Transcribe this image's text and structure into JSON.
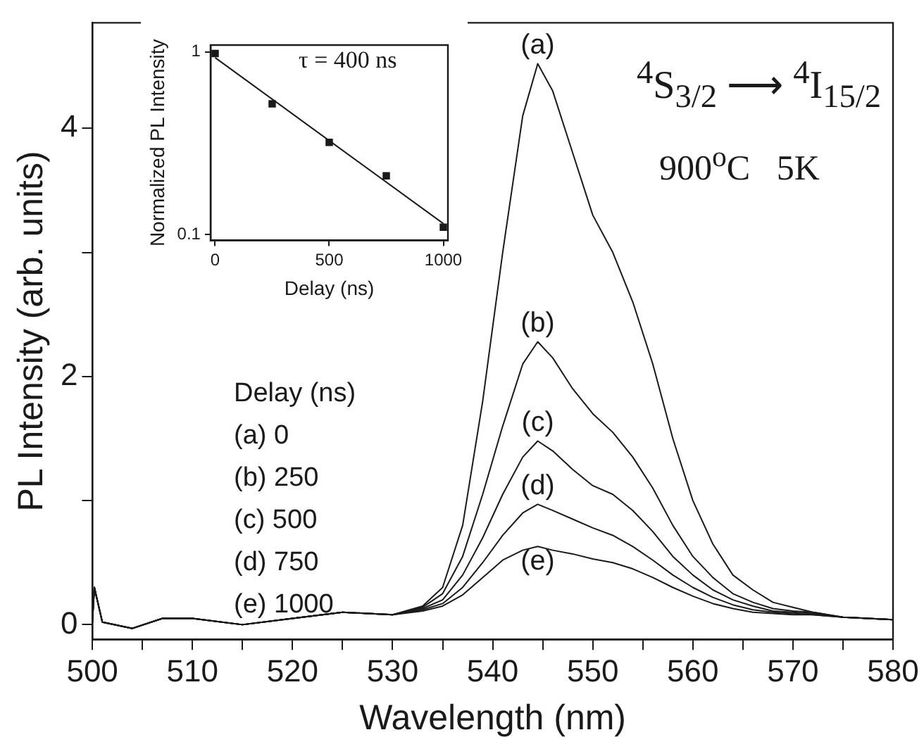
{
  "chart_data": [
    {
      "type": "line",
      "xlabel": "Wavelength (nm)",
      "ylabel": "PL Intensity (arb. units)",
      "xlim": [
        500,
        580
      ],
      "ylim": [
        -0.12,
        4.85
      ],
      "xticks": [
        500,
        {
          "value": 505,
          "label": null
        },
        510,
        {
          "value": 515,
          "label": null
        },
        520,
        {
          "value": 525,
          "label": null
        },
        530,
        {
          "value": 535,
          "label": null
        },
        540,
        {
          "value": 545,
          "label": null
        },
        550,
        {
          "value": 555,
          "label": null
        },
        560,
        {
          "value": 565,
          "label": null
        },
        570,
        {
          "value": 575,
          "label": null
        },
        580
      ],
      "yticks": [
        0,
        {
          "value": 1,
          "label": null
        },
        2,
        {
          "value": 3,
          "label": null
        },
        4
      ],
      "grid": false,
      "legend": false,
      "x": [
        500,
        500.2,
        501,
        504,
        507,
        510,
        515,
        520,
        525,
        530,
        533,
        535,
        537,
        539,
        541,
        543,
        544.5,
        546,
        548,
        550,
        552,
        554,
        556,
        558,
        560,
        562,
        564,
        566,
        568,
        570,
        572,
        575,
        580
      ],
      "series": [
        {
          "name": "(a)",
          "color": "#1a1a1a",
          "values": [
            0.02,
            0.3,
            0.02,
            -0.03,
            0.05,
            0.05,
            0.0,
            0.05,
            0.1,
            0.08,
            0.15,
            0.3,
            0.8,
            1.8,
            3.0,
            4.1,
            4.52,
            4.3,
            3.8,
            3.3,
            3.0,
            2.6,
            2.1,
            1.5,
            1.0,
            0.65,
            0.4,
            0.28,
            0.18,
            0.14,
            0.1,
            0.06,
            0.04
          ]
        },
        {
          "name": "(b)",
          "color": "#1a1a1a",
          "values": [
            0.02,
            0.3,
            0.02,
            -0.03,
            0.05,
            0.05,
            0.0,
            0.05,
            0.1,
            0.08,
            0.14,
            0.25,
            0.55,
            1.05,
            1.6,
            2.1,
            2.28,
            2.15,
            1.9,
            1.7,
            1.55,
            1.35,
            1.1,
            0.8,
            0.55,
            0.38,
            0.25,
            0.18,
            0.13,
            0.11,
            0.1,
            0.06,
            0.04
          ]
        },
        {
          "name": "(c)",
          "color": "#1a1a1a",
          "values": [
            0.02,
            0.3,
            0.02,
            -0.03,
            0.05,
            0.05,
            0.0,
            0.05,
            0.1,
            0.08,
            0.13,
            0.2,
            0.4,
            0.7,
            1.05,
            1.35,
            1.48,
            1.4,
            1.25,
            1.12,
            1.05,
            0.92,
            0.75,
            0.55,
            0.4,
            0.28,
            0.2,
            0.15,
            0.11,
            0.1,
            0.09,
            0.06,
            0.04
          ]
        },
        {
          "name": "(d)",
          "color": "#1a1a1a",
          "values": [
            0.02,
            0.3,
            0.02,
            -0.03,
            0.05,
            0.05,
            0.0,
            0.05,
            0.1,
            0.08,
            0.12,
            0.17,
            0.3,
            0.5,
            0.72,
            0.9,
            0.97,
            0.92,
            0.85,
            0.78,
            0.72,
            0.63,
            0.52,
            0.4,
            0.3,
            0.22,
            0.16,
            0.12,
            0.1,
            0.09,
            0.08,
            0.06,
            0.04
          ]
        },
        {
          "name": "(e)",
          "color": "#1a1a1a",
          "values": [
            0.02,
            0.3,
            0.02,
            -0.03,
            0.05,
            0.05,
            0.0,
            0.05,
            0.1,
            0.08,
            0.11,
            0.15,
            0.24,
            0.38,
            0.52,
            0.6,
            0.63,
            0.6,
            0.57,
            0.53,
            0.5,
            0.45,
            0.38,
            0.3,
            0.23,
            0.17,
            0.13,
            0.1,
            0.09,
            0.08,
            0.08,
            0.06,
            0.04
          ]
        }
      ],
      "annotations": [
        "Delay (ns)",
        "(a) 0",
        "(b) 250",
        "(c) 500",
        "(d) 750",
        "(e) 1000",
        "$^{4}$S$_{3/2}$ ⟶ $^{4}$I$_{15/2}$",
        "900$^{o}$C   5K"
      ]
    },
    {
      "type": "scatter",
      "xlabel": "Delay (ns)",
      "ylabel": "Normalized PL Intensity",
      "log": "y",
      "xlim": [
        -20,
        1020
      ],
      "ylim": [
        0.093,
        1.09
      ],
      "xticks": [
        0,
        500,
        1000
      ],
      "yticks": [
        0.1,
        1
      ],
      "grid": false,
      "legend": false,
      "marker": "square",
      "series": [
        {
          "color": "#1a1a1a",
          "x": [
            0,
            250,
            500,
            750,
            1000
          ],
          "values": [
            0.98,
            0.52,
            0.32,
            0.21,
            0.11
          ]
        },
        {
          "type": "line",
          "color": "#1a1a1a",
          "marker": "none",
          "x": [
            0,
            1000
          ],
          "values": [
            0.93,
            0.115
          ]
        }
      ],
      "annotations": [
        "τ = 400 ns"
      ]
    }
  ]
}
